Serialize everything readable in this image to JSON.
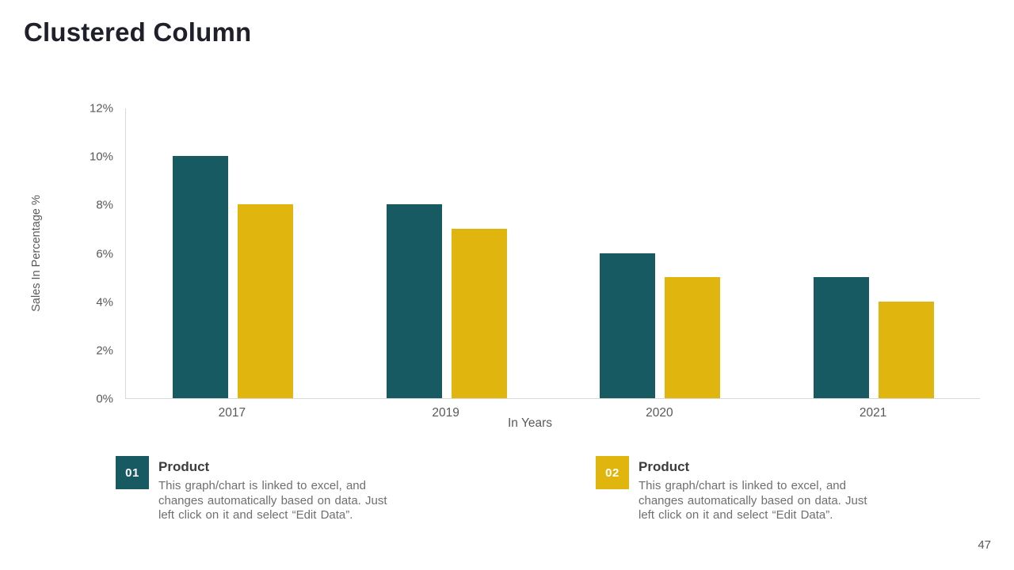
{
  "slide": {
    "title": "Clustered Column",
    "page_number": "47"
  },
  "chart_data": {
    "type": "bar",
    "title": "Clustered Column",
    "categories": [
      "2017",
      "2019",
      "2020",
      "2021"
    ],
    "series": [
      {
        "name": "Product 01",
        "color": "#175A62",
        "values": [
          10,
          8,
          6,
          5
        ]
      },
      {
        "name": "Product 02",
        "color": "#E0B50D",
        "values": [
          8,
          7,
          5,
          4
        ]
      }
    ],
    "xlabel": "In Years",
    "ylabel": "Sales In Percentage %",
    "ylim": [
      0,
      12
    ],
    "ytick_step": 2,
    "ytick_format": "{v}%",
    "grid": false,
    "legend_position": "bottom"
  },
  "legend": {
    "items": [
      {
        "number": "01",
        "title": "Product",
        "description": "This graph/chart is linked to excel, and\nchanges automatically based on data. Just\nleft click on it and select “Edit Data”.",
        "color": "#175A62"
      },
      {
        "number": "02",
        "title": "Product",
        "description": "This graph/chart is linked to excel, and\nchanges automatically based on data. Just\nleft click on it and select “Edit Data”.",
        "color": "#E0B50D"
      }
    ]
  }
}
